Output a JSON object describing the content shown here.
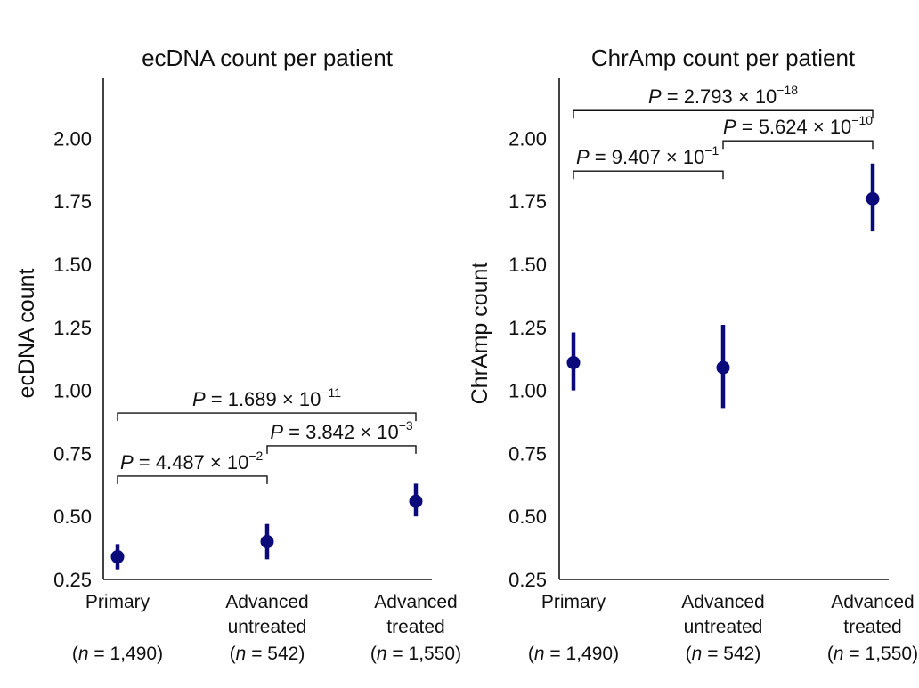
{
  "chart_data": [
    {
      "type": "scatter",
      "title": "ecDNA count per patient",
      "xlabel": "",
      "ylabel": "ecDNA count",
      "ylim": [
        0.25,
        2.25
      ],
      "yticks": [
        "0.25",
        "0.50",
        "0.75",
        "1.00",
        "1.25",
        "1.50",
        "1.75",
        "2.00"
      ],
      "categories": [
        {
          "line1": "Primary",
          "line2": "",
          "n": "(n = 1,490)",
          "n_prefix": "(",
          "n_var": "n",
          "n_rest": " = 1,490)"
        },
        {
          "line1": "Advanced",
          "line2": "untreated",
          "n": "(n = 542)",
          "n_prefix": "(",
          "n_var": "n",
          "n_rest": " = 542)"
        },
        {
          "line1": "Advanced",
          "line2": "treated",
          "n": "(n = 1,550)",
          "n_prefix": "(",
          "n_var": "n",
          "n_rest": " = 1,550)"
        }
      ],
      "points": [
        {
          "value": 0.34,
          "low": 0.29,
          "high": 0.39
        },
        {
          "value": 0.4,
          "low": 0.33,
          "high": 0.47
        },
        {
          "value": 0.56,
          "low": 0.5,
          "high": 0.63
        }
      ],
      "comparisons": [
        {
          "from": 0,
          "to": 2,
          "y": 0.91,
          "label": "P = 1.689 × 10−11",
          "p": "P",
          "eq": " = 1.689 × 10",
          "exp": "−11"
        },
        {
          "from": 1,
          "to": 2,
          "y": 0.78,
          "label": "P = 3.842 × 10−3",
          "p": "P",
          "eq": " = 3.842 × 10",
          "exp": "−3"
        },
        {
          "from": 0,
          "to": 1,
          "y": 0.66,
          "label": "P = 4.487 × 10−2",
          "p": "P",
          "eq": " = 4.487 × 10",
          "exp": "−2"
        }
      ]
    },
    {
      "type": "scatter",
      "title": "ChrAmp count per patient",
      "xlabel": "",
      "ylabel": "ChrAmp count",
      "ylim": [
        0.25,
        2.25
      ],
      "yticks": [
        "0.25",
        "0.50",
        "0.75",
        "1.00",
        "1.25",
        "1.50",
        "1.75",
        "2.00"
      ],
      "categories": [
        {
          "line1": "Primary",
          "line2": "",
          "n": "(n = 1,490)",
          "n_prefix": "(",
          "n_var": "n",
          "n_rest": " = 1,490)"
        },
        {
          "line1": "Advanced",
          "line2": "untreated",
          "n": "(n = 542)",
          "n_prefix": "(",
          "n_var": "n",
          "n_rest": " = 542)"
        },
        {
          "line1": "Advanced",
          "line2": "treated",
          "n": "(n = 1,550)",
          "n_prefix": "(",
          "n_var": "n",
          "n_rest": " = 1,550)"
        }
      ],
      "points": [
        {
          "value": 1.11,
          "low": 1.0,
          "high": 1.23
        },
        {
          "value": 1.09,
          "low": 0.93,
          "high": 1.26
        },
        {
          "value": 1.76,
          "low": 1.63,
          "high": 1.9
        }
      ],
      "comparisons": [
        {
          "from": 0,
          "to": 2,
          "y": 2.11,
          "label": "P = 2.793 × 10−18",
          "p": "P",
          "eq": " = 2.793 × 10",
          "exp": "−18"
        },
        {
          "from": 1,
          "to": 2,
          "y": 1.99,
          "label": "P = 5.624 × 10−10",
          "p": "P",
          "eq": " = 5.624 × 10",
          "exp": "−10"
        },
        {
          "from": 0,
          "to": 1,
          "y": 1.87,
          "label": "P = 9.407 × 10−1",
          "p": "P",
          "eq": " = 9.407 × 10",
          "exp": "−1"
        }
      ]
    }
  ],
  "colors": {
    "marker": "#0a0a7a",
    "axis": "#111111",
    "text": "#111111",
    "background": "#ffffff"
  }
}
